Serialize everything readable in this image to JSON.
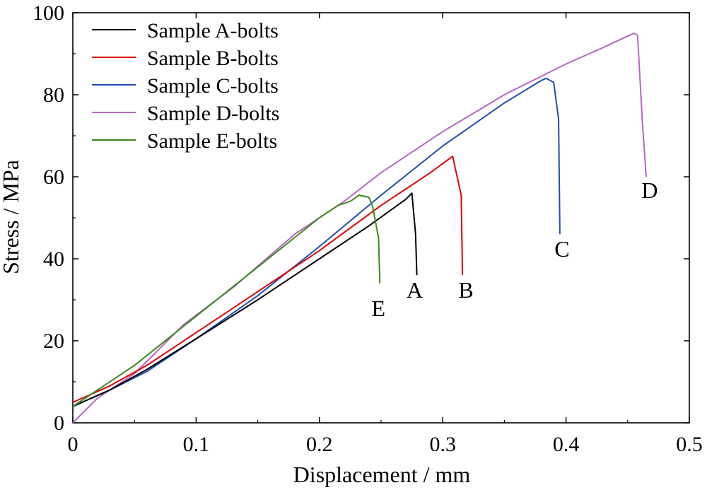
{
  "chart_data": {
    "type": "line",
    "xlabel": "Displacement / mm",
    "ylabel": "Stress / MPa",
    "xlim": [
      0,
      0.5
    ],
    "ylim": [
      0,
      100
    ],
    "xticks": [
      0,
      0.1,
      0.2,
      0.3,
      0.4,
      0.5
    ],
    "xtick_labels": [
      "0",
      "0.1",
      "0.2",
      "0.3",
      "0.4",
      "0.5"
    ],
    "yticks": [
      0,
      20,
      40,
      60,
      80,
      100
    ],
    "ytick_labels": [
      "0",
      "20",
      "40",
      "60",
      "80",
      "100"
    ],
    "grid": false,
    "legend_position": "top-left",
    "series": [
      {
        "name": "Sample A-bolts",
        "color": "#000000",
        "label": "A",
        "x": [
          0,
          0.03,
          0.06,
          0.1,
          0.15,
          0.2,
          0.24,
          0.27,
          0.275,
          0.278,
          0.279
        ],
        "y": [
          4,
          8,
          13,
          20.5,
          30,
          40,
          48,
          54.5,
          56,
          46,
          36
        ]
      },
      {
        "name": "Sample B-bolts",
        "color": "#e00000",
        "label": "B",
        "x": [
          0,
          0.03,
          0.06,
          0.1,
          0.15,
          0.2,
          0.25,
          0.29,
          0.308,
          0.315,
          0.316
        ],
        "y": [
          5,
          9,
          14,
          22,
          32,
          42,
          53,
          61,
          65,
          55.5,
          36
        ]
      },
      {
        "name": "Sample C-bolts",
        "color": "#1f4fb0",
        "label": "C",
        "x": [
          0,
          0.03,
          0.06,
          0.1,
          0.15,
          0.2,
          0.25,
          0.3,
          0.35,
          0.38,
          0.384,
          0.39,
          0.394,
          0.395
        ],
        "y": [
          4,
          8,
          12.5,
          20.5,
          31,
          43,
          55.5,
          67.5,
          78,
          83.5,
          84,
          83,
          74,
          46
        ]
      },
      {
        "name": "Sample D-bolts",
        "color": "#b766c4",
        "label": "D",
        "x": [
          0,
          0.02,
          0.05,
          0.09,
          0.13,
          0.18,
          0.22,
          0.25,
          0.3,
          0.35,
          0.4,
          0.43,
          0.455,
          0.458,
          0.462,
          0.465
        ],
        "y": [
          0,
          6,
          12,
          24,
          33,
          46,
          54,
          61,
          71,
          80,
          87.5,
          91.5,
          95,
          94.5,
          73,
          60
        ]
      },
      {
        "name": "Sample E-bolts",
        "color": "#3a8a1c",
        "label": "E",
        "x": [
          0,
          0.02,
          0.05,
          0.1,
          0.15,
          0.2,
          0.215,
          0.225,
          0.232,
          0.24,
          0.243,
          0.248,
          0.249
        ],
        "y": [
          4,
          8,
          14,
          26,
          38,
          50,
          53,
          54,
          55.5,
          55,
          53,
          45,
          34
        ]
      }
    ]
  }
}
